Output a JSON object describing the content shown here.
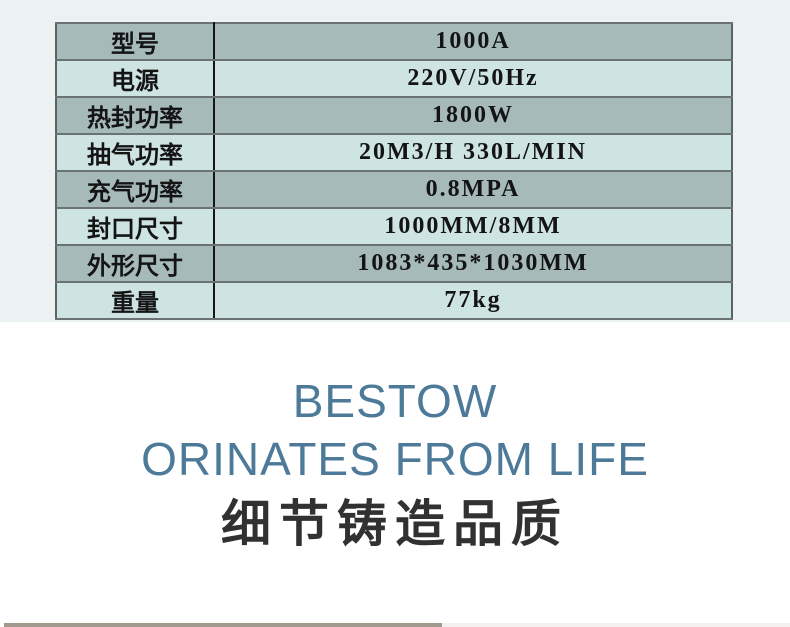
{
  "spec_table": {
    "rows": [
      {
        "label": "型号",
        "value": "1000A"
      },
      {
        "label": "电源",
        "value": "220V/50Hz"
      },
      {
        "label": "热封功率",
        "value": "1800W"
      },
      {
        "label": "抽气功率",
        "value": "20M3/H 330L/MIN"
      },
      {
        "label": "充气功率",
        "value": "0.8MPA"
      },
      {
        "label": "封口尺寸",
        "value": "1000MM/8MM"
      },
      {
        "label": "外形尺寸",
        "value": "1083*435*1030MM"
      },
      {
        "label": "重量",
        "value": "77kg"
      }
    ]
  },
  "slogan": {
    "brand_line": "BESTOW",
    "tagline_en": "ORINATES FROM LIFE",
    "tagline_zh": "细节铸造品质"
  },
  "colors": {
    "accent_blue": "#4e7a99",
    "row_dark": "#a6baba",
    "row_light": "#cde4e3",
    "band_background": "#ecf2f2",
    "bottom_strip": "#a29a8e",
    "table_border": "#5a6262"
  }
}
